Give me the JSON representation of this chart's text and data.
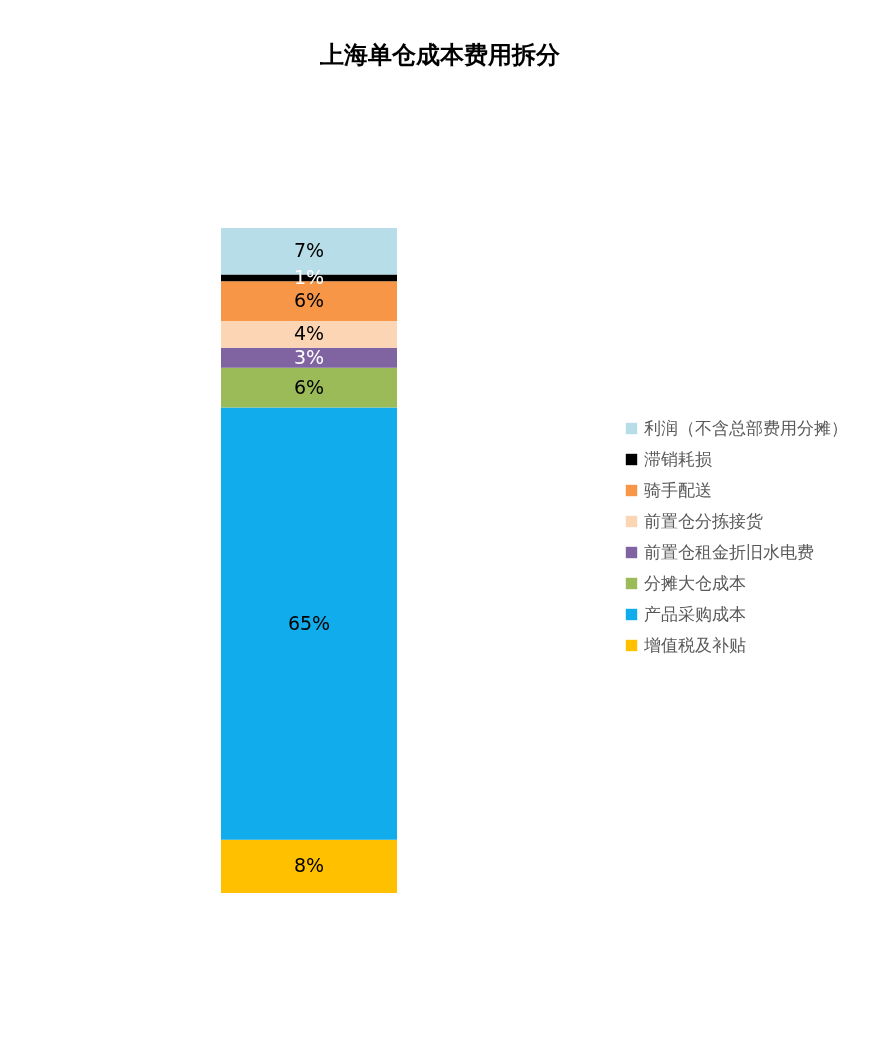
{
  "chart_data": {
    "type": "bar",
    "title": "上海单仓成本费用拆分",
    "categories": [
      null
    ],
    "stacked": true,
    "legend": "right",
    "series": [
      {
        "name": "增值税及补贴",
        "color": "#ffc000",
        "values": [
          8
        ],
        "value_labels": [
          "8%"
        ]
      },
      {
        "name": "产品采购成本",
        "color": "#11acec",
        "values": [
          65
        ],
        "value_labels": [
          "65%"
        ]
      },
      {
        "name": "分摊大仓成本",
        "color": "#9bbb59",
        "values": [
          6
        ],
        "value_labels": [
          "6%"
        ]
      },
      {
        "name": "前置仓租金折旧水电费",
        "color": "#8064a2",
        "values": [
          3
        ],
        "value_labels": [
          "3%"
        ]
      },
      {
        "name": "前置仓分拣接货",
        "color": "#fcd5b5",
        "values": [
          4
        ],
        "value_labels": [
          "4%"
        ]
      },
      {
        "name": "骑手配送",
        "color": "#f79646",
        "values": [
          6
        ],
        "value_labels": [
          "6%"
        ]
      },
      {
        "name": "滞销耗损",
        "color": "#000000",
        "values": [
          1
        ],
        "value_labels": [
          "1%"
        ]
      },
      {
        "name": "利润（不含总部费用分摊）",
        "color": "#b7dde8",
        "values": [
          7
        ],
        "value_labels": [
          "7%"
        ]
      }
    ]
  }
}
